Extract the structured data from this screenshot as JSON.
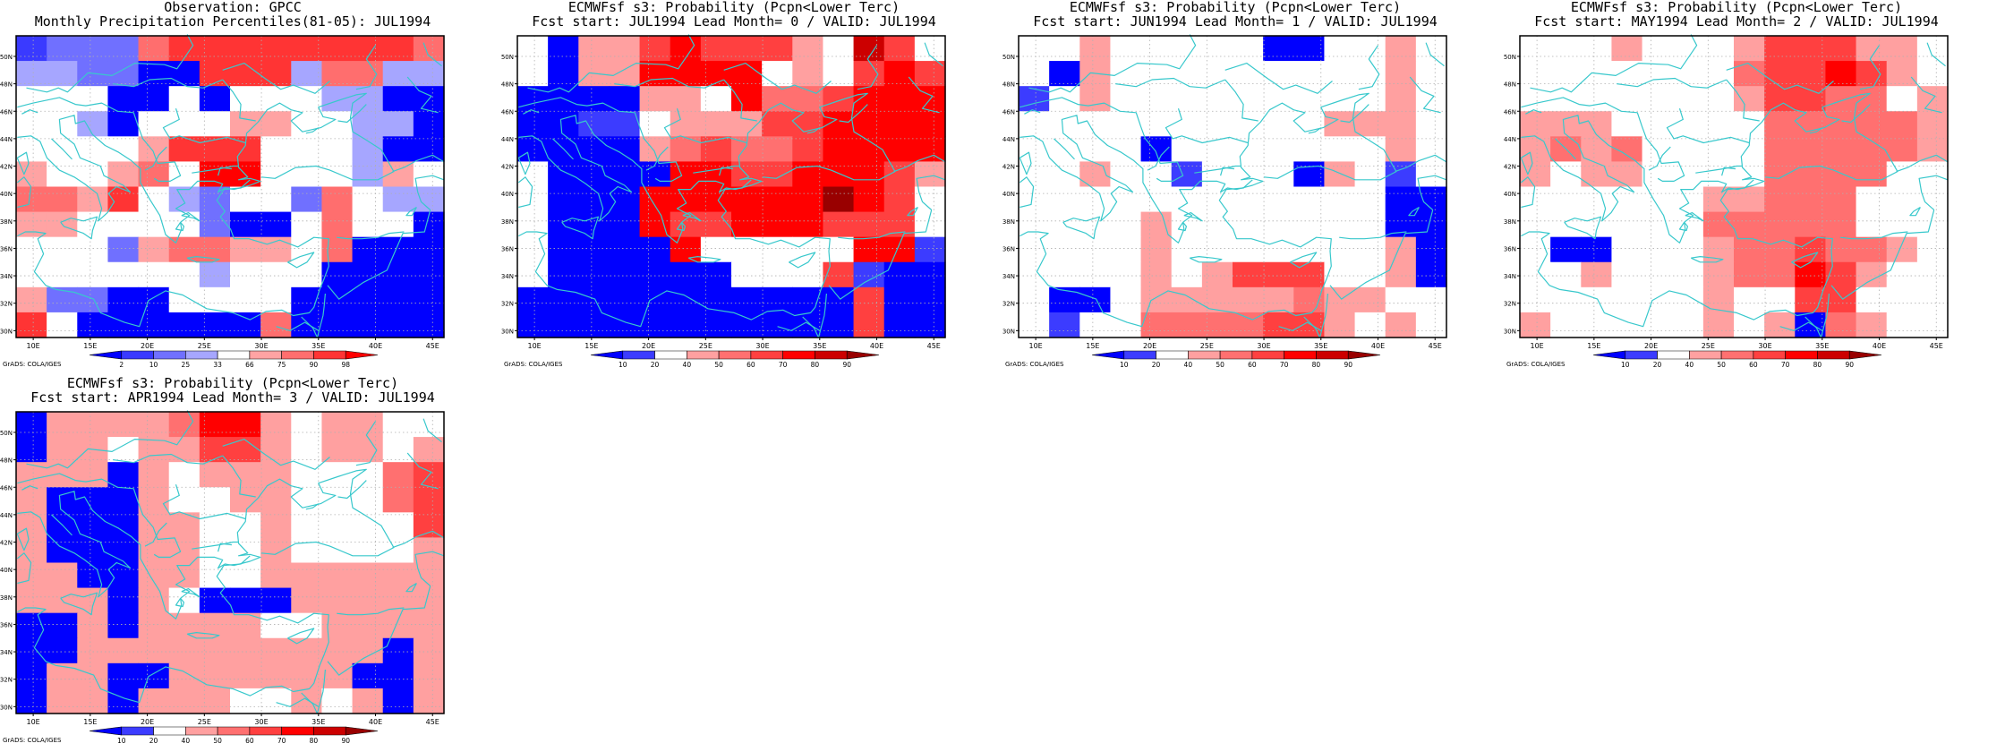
{
  "colors": {
    "coastline": "#38c8cc",
    "frame": "#000000",
    "gridline": "#b0b0b0"
  },
  "axis_labels": {
    "lon": [
      "10E",
      "15E",
      "20E",
      "25E",
      "30E",
      "35E",
      "40E",
      "45E"
    ],
    "lat": [
      "30N",
      "32N",
      "34N",
      "36N",
      "38N",
      "40N",
      "42N",
      "44N",
      "46N",
      "48N",
      "50N"
    ]
  },
  "credit": "GrADS: COLA/IGES",
  "colorbars": {
    "percentile": {
      "labels": [
        "2",
        "10",
        "25",
        "33",
        "66",
        "75",
        "90",
        "98"
      ],
      "colors": [
        "#0000ff",
        "#3a3aff",
        "#7070ff",
        "#a6a6ff",
        "#ffffff",
        "#ffa3a3",
        "#ff6e6e",
        "#ff3434",
        "#ff0000"
      ]
    },
    "probability": {
      "labels": [
        "10",
        "20",
        "40",
        "50",
        "60",
        "70",
        "80",
        "90"
      ],
      "colors": [
        "#0000ff",
        "#3c3cff",
        "#ffffff",
        "#ffa0a0",
        "#ff7070",
        "#ff4040",
        "#ff0000",
        "#cc0000",
        "#990000"
      ]
    }
  },
  "panels": [
    {
      "title1": "Observation: GPCC",
      "title2": "Monthly Precipitation Percentiles(81-05): JUL1994",
      "bar": "percentile",
      "grid": [
        "12226777777776",
        "33220077736633",
        "44400404443300",
        "44304445544330",
        "44445777444300",
        "54456488444354",
        "66574324426433",
        "55444420046440",
        "44425665546000",
        "44444434440000",
        "52200444400000",
        "74000000600000"
      ]
    },
    {
      "title1": "ECMWFsf s3: Probability (Pcpn<Lower Terc)",
      "title2": "Fcst start: JUL1994   Lead Month= 0 / VALID: JUL1994",
      "bar": "probability",
      "grid": [
        "20335655532752",
        "20336666232565",
        "00003326445666",
        "00112333556666",
        "00003454456666",
        "20000665566653",
        "20006666668652",
        "20006556665552",
        "20000622222661",
        "20000002225100",
        "00000000000500",
        "00000000000500"
      ]
    },
    {
      "title1": "ECMWFsf s3: Probability (Pcpn<Lower Terc)",
      "title2": "Fcst start: JUN1994   Lead Month= 1 / VALID: JUL1994",
      "bar": "probability",
      "grid": [
        "22322222002232",
        "20322222222232",
        "12322222222232",
        "22222222223332",
        "22220222222232",
        "22322122203212",
        "22222222222200",
        "22223222222200",
        "22223222222230",
        "22223235552230",
        "20023333343322",
        "21224444553232"
      ]
    },
    {
      "title1": "ECMWFsf s3: Probability (Pcpn<Lower Terc)",
      "title2": "Fcst start: MAY1994   Lead Month= 2 / VALID: JUL1994",
      "bar": "probability",
      "grid": [
        "22232223555332",
        "22222224556532",
        "22222223554423",
        "33322222444443",
        "34342222444443",
        "32332222444422",
        "22222233444222",
        "22222244444222",
        "20022234454432",
        "22322234465322",
        "22222232255222",
        "32222232304322"
      ]
    },
    {
      "title1": "ECMWFsf s3: Probability (Pcpn<Lower Terc)",
      "title2": "Fcst start: APR1994   Lead Month= 3 / VALID: JUL1994",
      "bar": "probability",
      "grid": [
        "03333466323322",
        "03323355323323",
        "33303233322245",
        "30003223322245",
        "30003322322225",
        "30003322322223",
        "33003322333333",
        "33303200033333",
        "00303333223333",
        "00333333333303",
        "03300333333003",
        "03303332232303"
      ]
    }
  ]
}
